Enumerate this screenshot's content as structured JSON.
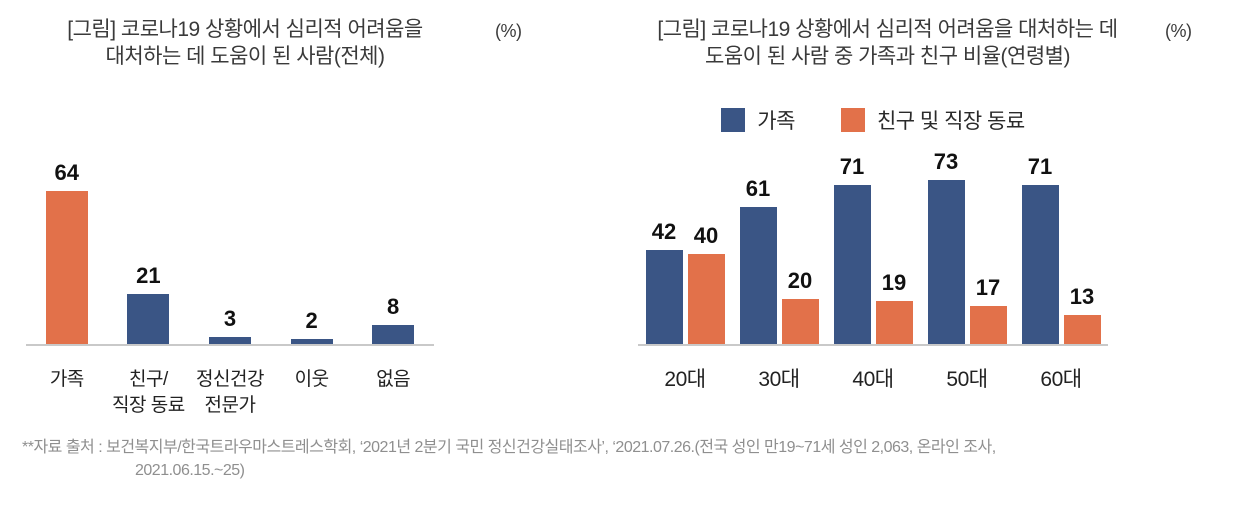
{
  "colors": {
    "family_blue": "#3A5585",
    "friend_orange": "#E2714A",
    "axis_line": "#C9C9C9",
    "title_text": "#3A3A3A",
    "footer_text": "#8F8F8F"
  },
  "left_chart": {
    "title_line1": "[그림] 코로나19 상황에서 심리적 어려움을",
    "title_line2": "대처하는 데 도움이 된 사람(전체)",
    "unit_label": "(%)"
  },
  "right_chart": {
    "title_line1": "[그림] 코로나19 상황에서 심리적 어려움을 대처하는 데",
    "title_line2": "도움이 된 사람 중 가족과 친구 비율(연령별)",
    "unit_label": "(%)",
    "legend": [
      {
        "label": "가족",
        "color": "#3A5585"
      },
      {
        "label": "친구 및 직장 동료",
        "color": "#E2714A"
      }
    ]
  },
  "chart_data": [
    {
      "type": "bar",
      "title": "[그림] 코로나19 상황에서 심리적 어려움을 대처하는 데 도움이 된 사람(전체)",
      "unit": "%",
      "categories": [
        "가족",
        "친구/\n직장 동료",
        "정신건강\n전문가",
        "이웃",
        "없음"
      ],
      "values": [
        64,
        21,
        3,
        2,
        8
      ],
      "bar_colors": [
        "#E2714A",
        "#3A5585",
        "#3A5585",
        "#3A5585",
        "#3A5585"
      ],
      "data_labels": true,
      "grid": false,
      "ylim": [
        0,
        80
      ],
      "xlabel": "",
      "ylabel": ""
    },
    {
      "type": "bar",
      "title": "[그림] 코로나19 상황에서 심리적 어려움을 대처하는 데 도움이 된 사람 중 가족과 친구 비율(연령별)",
      "unit": "%",
      "categories": [
        "20대",
        "30대",
        "40대",
        "50대",
        "60대"
      ],
      "series": [
        {
          "name": "가족",
          "color": "#3A5585",
          "values": [
            42,
            61,
            71,
            73,
            71
          ]
        },
        {
          "name": "친구 및 직장 동료",
          "color": "#E2714A",
          "values": [
            40,
            20,
            19,
            17,
            13
          ]
        }
      ],
      "legend_position": "top",
      "data_labels": true,
      "grid": false,
      "ylim": [
        0,
        80
      ],
      "xlabel": "",
      "ylabel": ""
    }
  ],
  "footer": {
    "line1": "**자료 출처 : 보건복지부/한국트라우마스트레스학회, ‘2021년 2분기 국민 정신건강실태조사’, ‘2021.07.26.(전국 성인 만19~71세 성인 2,063, 온라인 조사,",
    "line2": "2021.06.15.~25)"
  }
}
